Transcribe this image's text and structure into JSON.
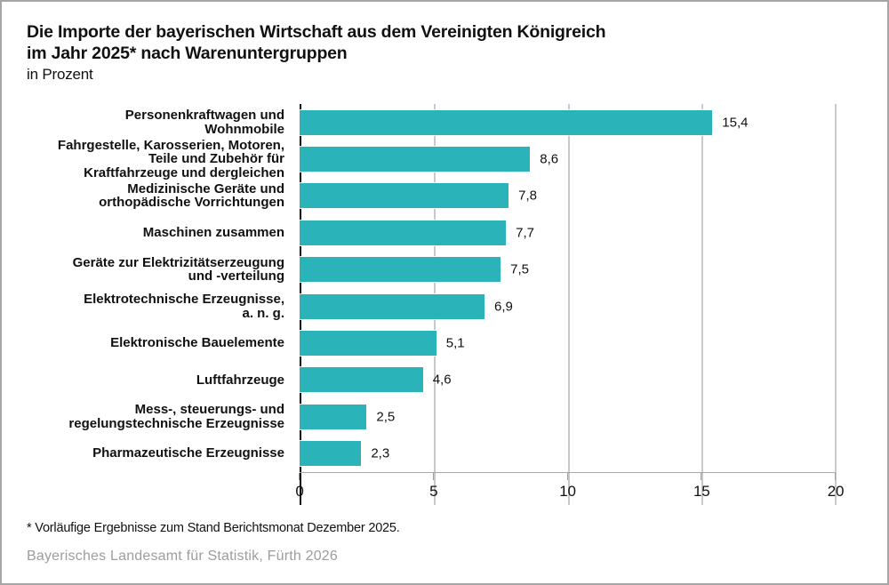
{
  "header": {
    "title_line1": "Die Importe der bayerischen Wirtschaft aus dem Vereinigten Königreich",
    "title_line2": "im Jahr 2025* nach Warenuntergruppen",
    "subtitle": "in Prozent"
  },
  "chart_data": {
    "type": "bar",
    "orientation": "horizontal",
    "title": "Die Importe der bayerischen Wirtschaft aus dem Vereinigten Königreich im Jahr 2025* nach Warenuntergruppen",
    "unit_label": "in Prozent",
    "xlabel": "",
    "ylabel": "",
    "xlim": [
      0,
      20
    ],
    "x_ticks": [
      0,
      5,
      10,
      15,
      20
    ],
    "grid": true,
    "bar_color": "#2ab3b8",
    "categories": [
      "Personenkraftwagen und Wohnmobile",
      "Fahrgestelle, Karosserien, Motoren, Teile und Zubehör für Kraftfahrzeuge und dergleichen",
      "Medizinische Geräte und orthopädische Vorrichtungen",
      "Maschinen zusammen",
      "Geräte zur Elektrizitätserzeugung und -verteilung",
      "Elektrotechnische Erzeugnisse, a. n. g.",
      "Elektronische Bauelemente",
      "Luftfahrzeuge",
      "Mess-, steuerungs- und regelungstechnische Erzeugnisse",
      "Pharmazeutische Erzeugnisse"
    ],
    "category_lines": [
      [
        "Personenkraftwagen und",
        "Wohnmobile"
      ],
      [
        "Fahrgestelle, Karosserien, Motoren,",
        "Teile und Zubehör für",
        "Kraftfahrzeuge und dergleichen"
      ],
      [
        "Medizinische Geräte und",
        "orthopädische Vorrichtungen"
      ],
      [
        "Maschinen zusammen"
      ],
      [
        "Geräte zur Elektrizitätserzeugung",
        "und -verteilung"
      ],
      [
        "Elektrotechnische Erzeugnisse,",
        "a. n. g."
      ],
      [
        "Elektronische Bauelemente"
      ],
      [
        "Luftfahrzeuge"
      ],
      [
        "Mess-, steuerungs- und",
        "regelungstechnische Erzeugnisse"
      ],
      [
        "Pharmazeutische Erzeugnisse"
      ]
    ],
    "values": [
      15.4,
      8.6,
      7.8,
      7.7,
      7.5,
      6.9,
      5.1,
      4.6,
      2.5,
      2.3
    ],
    "value_labels": [
      "15,4",
      "8,6",
      "7,8",
      "7,7",
      "7,5",
      "6,9",
      "5,1",
      "4,6",
      "2,5",
      "2,3"
    ]
  },
  "footnote": "* Vorläufige Ergebnisse zum Stand Berichtsmonat Dezember 2025.",
  "source": "Bayerisches Landesamt für Statistik, Fürth 2026"
}
